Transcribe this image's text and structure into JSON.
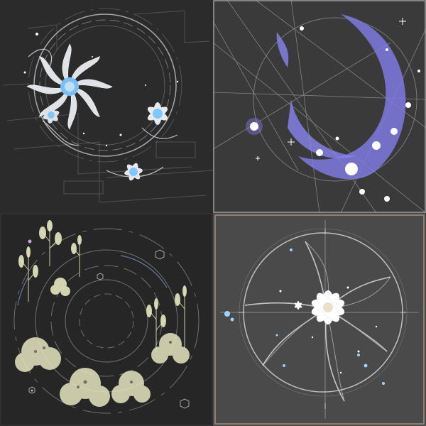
{
  "grid": {
    "tiles": [
      {
        "subject": "white-lotus-flowers-on-circular-hud",
        "palette": {
          "bg": "#2b2b2b",
          "line": "#cfd3d8",
          "accent": "#7fc8ff"
        }
      },
      {
        "subject": "violet-glowing-crescent-ring",
        "palette": {
          "bg": "#3a3a3a",
          "line": "#cfcfcf",
          "accent": "#8a84f0"
        }
      },
      {
        "subject": "botanical-plants-around-circular-hud",
        "palette": {
          "bg": "#262626",
          "line": "#9a9a9a",
          "accent": "#e6e6c2"
        }
      },
      {
        "subject": "white-flower-star-in-ring",
        "palette": {
          "bg": "#4a4a4a",
          "line": "#d9d9d9",
          "accent": "#9fd1ff"
        }
      }
    ]
  }
}
